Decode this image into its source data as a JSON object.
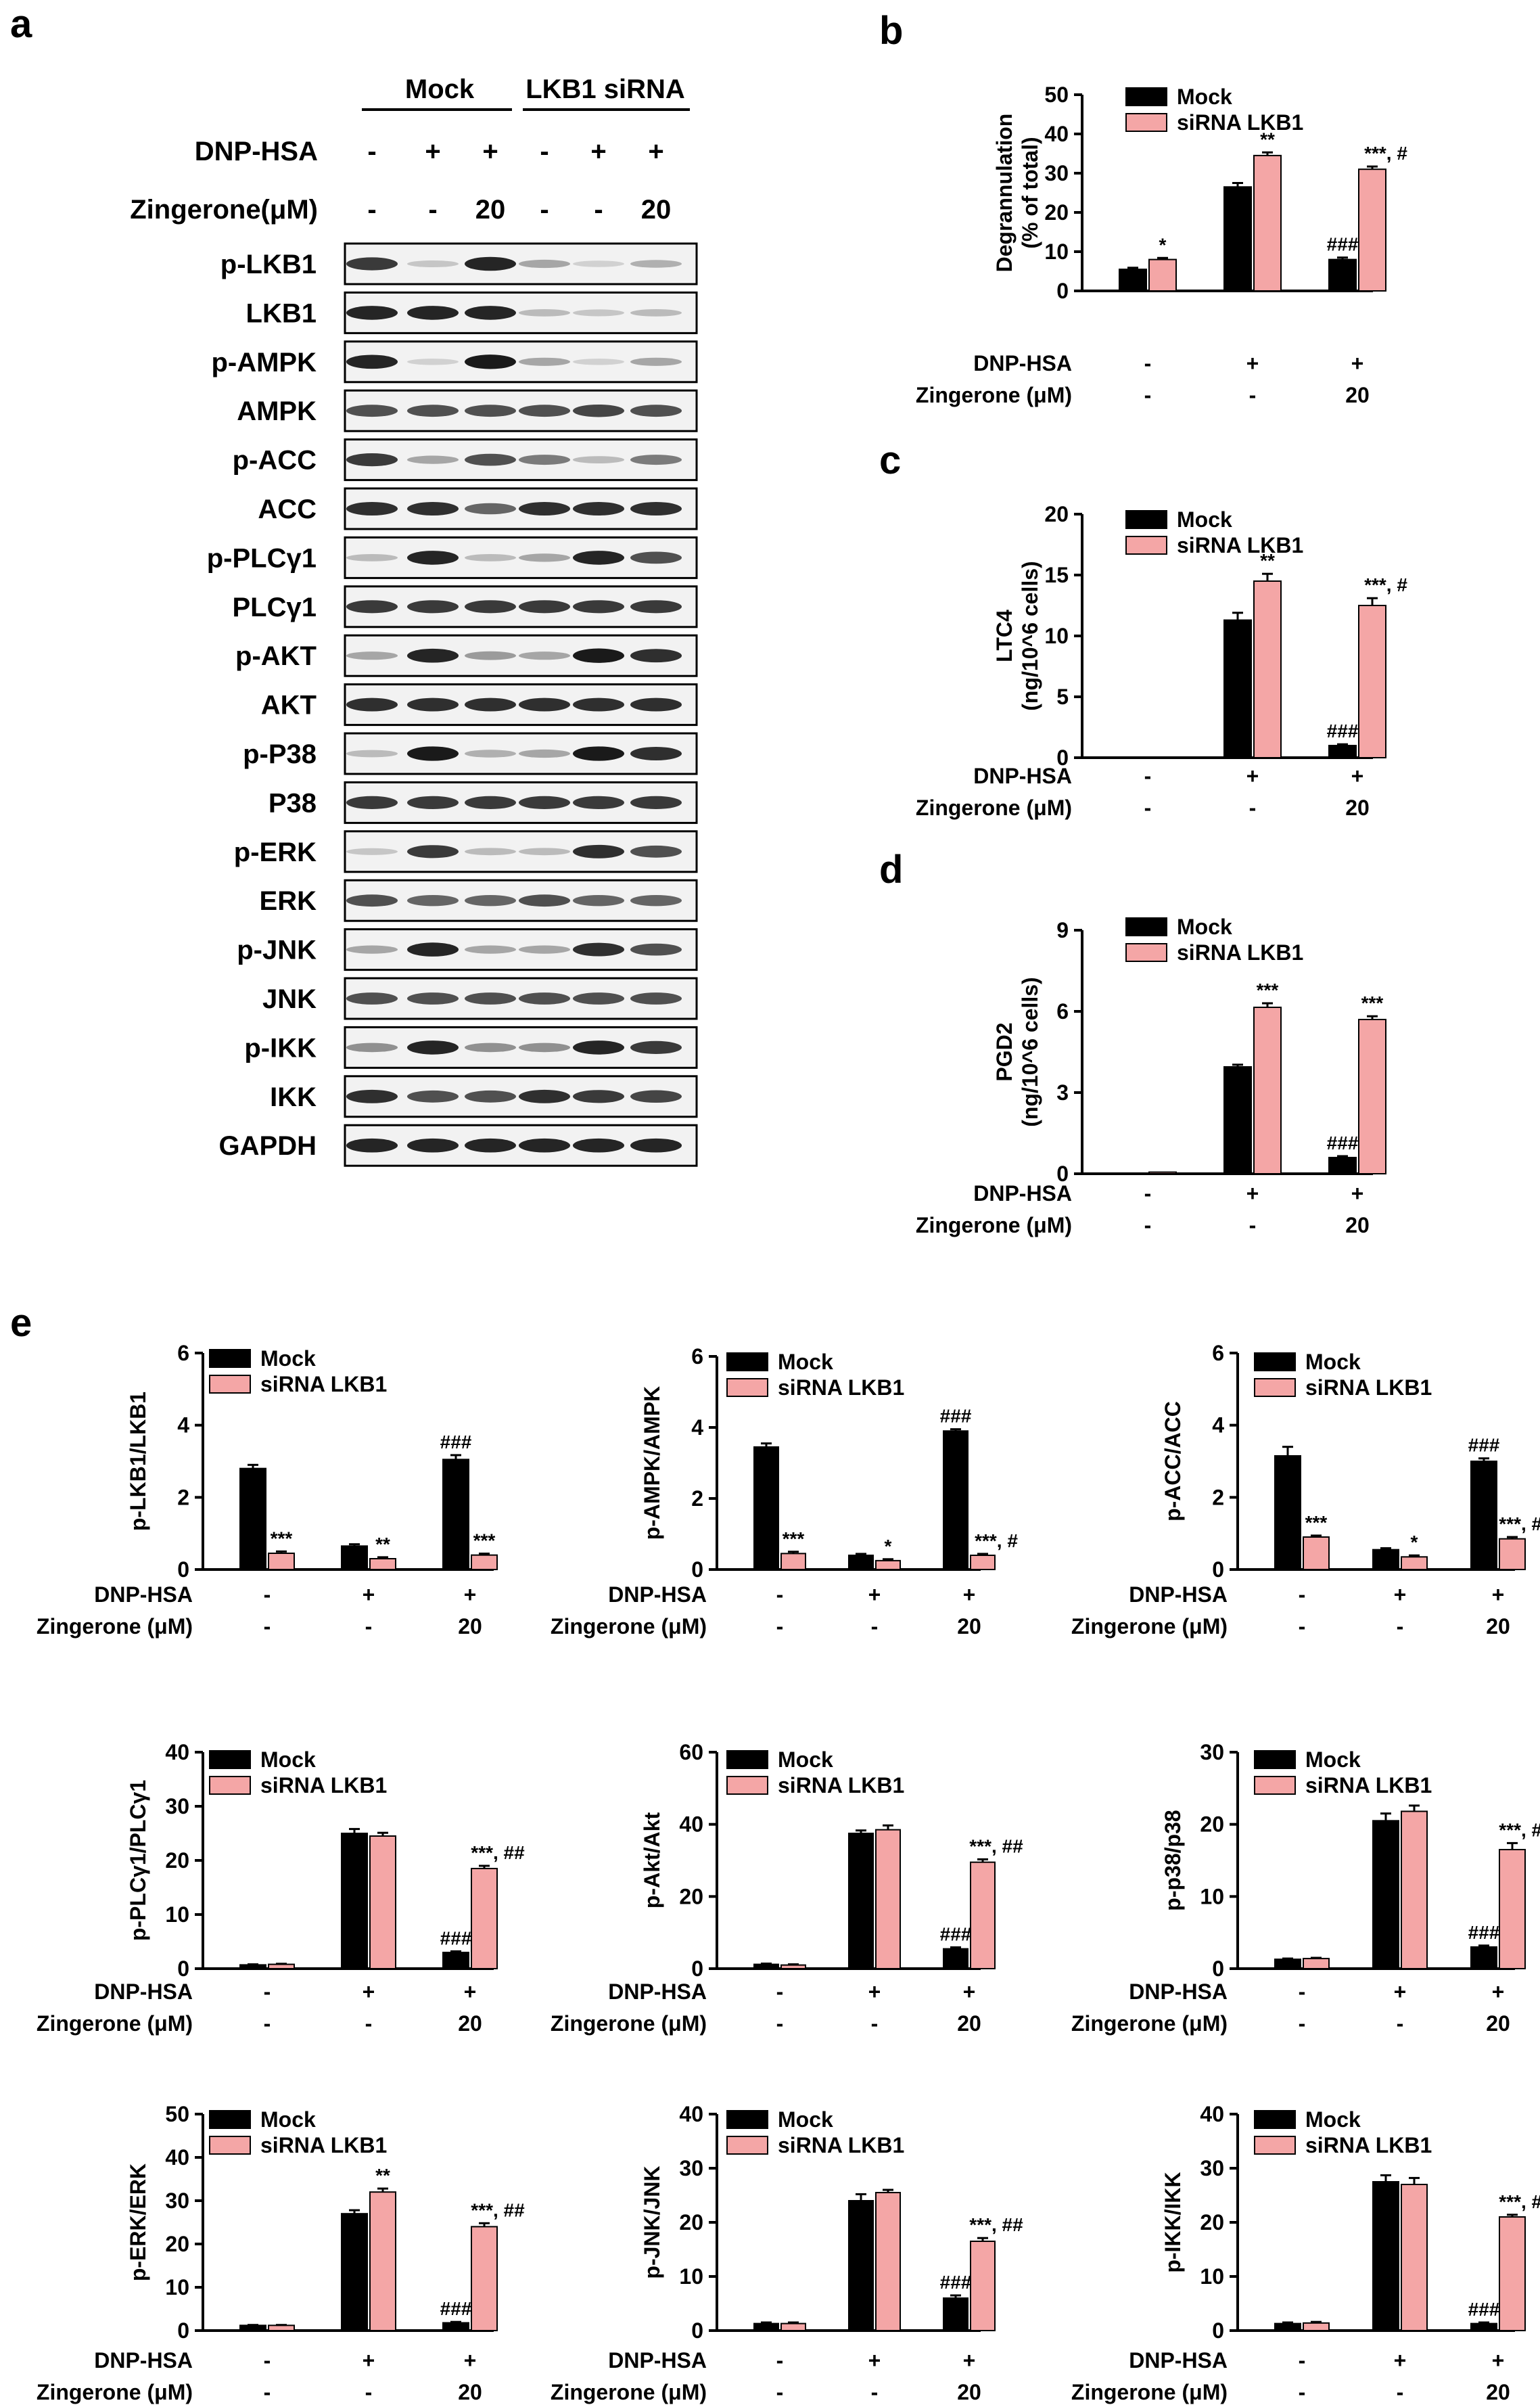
{
  "figure": {
    "panel_letters": [
      "a",
      "b",
      "c",
      "d",
      "e"
    ],
    "legend": {
      "mock": "Mock",
      "sirna": "siRNA LKB1",
      "mock_color": "#000000",
      "sirna_color": "#f4a6a6"
    },
    "condition_rows": {
      "dnp_label": "DNP-HSA",
      "zing_label": "Zingerone (μM)",
      "dnp_values": [
        "-",
        "+",
        "+"
      ],
      "zing_values": [
        "-",
        "-",
        "20"
      ]
    }
  },
  "western_blot": {
    "group_labels": [
      "Mock",
      "LKB1 siRNA"
    ],
    "dnp_label": "DNP-HSA",
    "zing_label": "Zingerone(μM)",
    "dnp_values": [
      "-",
      "+",
      "+",
      "-",
      "+",
      "+"
    ],
    "zing_values": [
      "-",
      "-",
      "20",
      "-",
      "-",
      "20"
    ],
    "proteins": [
      "p-LKB1",
      "LKB1",
      "p-AMPK",
      "AMPK",
      "p-ACC",
      "ACC",
      "p-PLCγ1",
      "PLCγ1",
      "p-AKT",
      "AKT",
      "p-P38",
      "P38",
      "p-ERK",
      "ERK",
      "p-JNK",
      "JNK",
      "p-IKK",
      "IKK",
      "GAPDH"
    ],
    "band_intensity": [
      [
        0.8,
        0.15,
        0.9,
        0.3,
        0.1,
        0.25
      ],
      [
        0.9,
        0.9,
        0.9,
        0.2,
        0.15,
        0.2
      ],
      [
        0.9,
        0.1,
        0.95,
        0.3,
        0.1,
        0.3
      ],
      [
        0.7,
        0.7,
        0.7,
        0.7,
        0.75,
        0.7
      ],
      [
        0.8,
        0.3,
        0.7,
        0.5,
        0.2,
        0.5
      ],
      [
        0.85,
        0.85,
        0.6,
        0.85,
        0.85,
        0.85
      ],
      [
        0.2,
        0.9,
        0.2,
        0.3,
        0.9,
        0.7
      ],
      [
        0.8,
        0.8,
        0.8,
        0.8,
        0.8,
        0.8
      ],
      [
        0.3,
        0.9,
        0.35,
        0.3,
        0.95,
        0.85
      ],
      [
        0.85,
        0.85,
        0.85,
        0.85,
        0.85,
        0.85
      ],
      [
        0.2,
        0.95,
        0.25,
        0.3,
        0.95,
        0.85
      ],
      [
        0.8,
        0.8,
        0.8,
        0.8,
        0.8,
        0.8
      ],
      [
        0.15,
        0.8,
        0.2,
        0.2,
        0.85,
        0.7
      ],
      [
        0.7,
        0.6,
        0.6,
        0.7,
        0.6,
        0.6
      ],
      [
        0.3,
        0.9,
        0.3,
        0.3,
        0.85,
        0.7
      ],
      [
        0.7,
        0.7,
        0.7,
        0.7,
        0.7,
        0.7
      ],
      [
        0.4,
        0.9,
        0.4,
        0.4,
        0.9,
        0.8
      ],
      [
        0.85,
        0.7,
        0.7,
        0.85,
        0.8,
        0.75
      ],
      [
        0.9,
        0.9,
        0.9,
        0.9,
        0.9,
        0.9
      ]
    ]
  },
  "chart_data": [
    {
      "id": "b",
      "type": "bar",
      "ylabel": [
        "Degrannulation",
        "(% of total)"
      ],
      "ylim": [
        0,
        50
      ],
      "yticks": [
        0,
        10,
        20,
        30,
        40,
        50
      ],
      "categories": [
        "-/-",
        "+/-",
        "+/20"
      ],
      "series": [
        {
          "name": "Mock",
          "values": [
            5.5,
            26.5,
            8.0
          ],
          "errors": [
            0.4,
            1.0,
            0.5
          ],
          "annotations": [
            "",
            "",
            "###"
          ]
        },
        {
          "name": "siRNA LKB1",
          "values": [
            8.0,
            34.5,
            31.0
          ],
          "errors": [
            0.4,
            0.8,
            0.7
          ],
          "annotations": [
            "*",
            "**",
            "***, #"
          ]
        }
      ]
    },
    {
      "id": "c",
      "type": "bar",
      "ylabel": [
        "LTC4",
        "(ng/10^6 cells)"
      ],
      "ylim": [
        0,
        20
      ],
      "yticks": [
        0,
        5,
        10,
        15,
        20
      ],
      "categories": [
        "-/-",
        "+/-",
        "+/20"
      ],
      "series": [
        {
          "name": "Mock",
          "values": [
            0.05,
            11.3,
            1.0
          ],
          "errors": [
            0.0,
            0.6,
            0.1
          ],
          "annotations": [
            "",
            "",
            "###"
          ]
        },
        {
          "name": "siRNA LKB1",
          "values": [
            0.05,
            14.5,
            12.5
          ],
          "errors": [
            0.0,
            0.6,
            0.6
          ],
          "annotations": [
            "",
            "**",
            "***, #"
          ]
        }
      ]
    },
    {
      "id": "d",
      "type": "bar",
      "ylabel": [
        "PGD2",
        "(ng/10^6 cells)"
      ],
      "ylim": [
        0,
        9
      ],
      "yticks": [
        0,
        3,
        6,
        9
      ],
      "categories": [
        "-/-",
        "+/-",
        "+/20"
      ],
      "series": [
        {
          "name": "Mock",
          "values": [
            0.02,
            3.95,
            0.6
          ],
          "errors": [
            0.0,
            0.08,
            0.05
          ],
          "annotations": [
            "",
            "",
            "###"
          ]
        },
        {
          "name": "siRNA LKB1",
          "values": [
            0.06,
            6.15,
            5.7
          ],
          "errors": [
            0.0,
            0.15,
            0.12
          ],
          "annotations": [
            "",
            "***",
            "***"
          ]
        }
      ]
    },
    {
      "id": "e1",
      "type": "bar",
      "ylabel": [
        "p-LKB1/LKB1"
      ],
      "ylim": [
        0,
        6
      ],
      "yticks": [
        0,
        2,
        4,
        6
      ],
      "categories": [
        "-/-",
        "+/-",
        "+/20"
      ],
      "series": [
        {
          "name": "Mock",
          "values": [
            2.8,
            0.65,
            3.05
          ],
          "errors": [
            0.1,
            0.05,
            0.12
          ],
          "annotations": [
            "",
            "",
            "###"
          ]
        },
        {
          "name": "siRNA LKB1",
          "values": [
            0.45,
            0.3,
            0.4
          ],
          "errors": [
            0.05,
            0.04,
            0.04
          ],
          "annotations": [
            "***",
            "**",
            "***"
          ]
        }
      ]
    },
    {
      "id": "e2",
      "type": "bar",
      "ylabel": [
        "p-AMPK/AMPK"
      ],
      "ylim": [
        0,
        6
      ],
      "yticks": [
        0,
        2,
        4,
        6
      ],
      "categories": [
        "-/-",
        "+/-",
        "+/20"
      ],
      "series": [
        {
          "name": "Mock",
          "values": [
            3.45,
            0.4,
            3.9
          ],
          "errors": [
            0.1,
            0.04,
            0.05
          ],
          "annotations": [
            "",
            "",
            "###"
          ]
        },
        {
          "name": "siRNA LKB1",
          "values": [
            0.45,
            0.25,
            0.4
          ],
          "errors": [
            0.05,
            0.04,
            0.04
          ],
          "annotations": [
            "***",
            "*",
            "***, #"
          ]
        }
      ]
    },
    {
      "id": "e3",
      "type": "bar",
      "ylabel": [
        "p-ACC/ACC"
      ],
      "ylim": [
        0,
        6
      ],
      "yticks": [
        0,
        2,
        4,
        6
      ],
      "categories": [
        "-/-",
        "+/-",
        "+/20"
      ],
      "series": [
        {
          "name": "Mock",
          "values": [
            3.15,
            0.55,
            3.0
          ],
          "errors": [
            0.25,
            0.04,
            0.08
          ],
          "annotations": [
            "",
            "",
            "###"
          ]
        },
        {
          "name": "siRNA LKB1",
          "values": [
            0.9,
            0.35,
            0.85
          ],
          "errors": [
            0.04,
            0.04,
            0.05
          ],
          "annotations": [
            "***",
            "*",
            "***, ##"
          ]
        }
      ]
    },
    {
      "id": "e4",
      "type": "bar",
      "ylabel": [
        "p-PLCγ1/PLCγ1"
      ],
      "ylim": [
        0,
        40
      ],
      "yticks": [
        0,
        10,
        20,
        30,
        40
      ],
      "categories": [
        "-/-",
        "+/-",
        "+/20"
      ],
      "series": [
        {
          "name": "Mock",
          "values": [
            0.7,
            25.0,
            3.0
          ],
          "errors": [
            0.1,
            0.8,
            0.2
          ],
          "annotations": [
            "",
            "",
            "###"
          ]
        },
        {
          "name": "siRNA LKB1",
          "values": [
            0.8,
            24.5,
            18.5
          ],
          "errors": [
            0.1,
            0.6,
            0.5
          ],
          "annotations": [
            "",
            "",
            "***, ##"
          ]
        }
      ]
    },
    {
      "id": "e5",
      "type": "bar",
      "ylabel": [
        "p-Akt/Akt"
      ],
      "ylim": [
        0,
        60
      ],
      "yticks": [
        0,
        20,
        40,
        60
      ],
      "categories": [
        "-/-",
        "+/-",
        "+/20"
      ],
      "series": [
        {
          "name": "Mock",
          "values": [
            1.2,
            37.5,
            5.5
          ],
          "errors": [
            0.2,
            0.8,
            0.4
          ],
          "annotations": [
            "",
            "",
            "###"
          ]
        },
        {
          "name": "siRNA LKB1",
          "values": [
            1.0,
            38.5,
            29.5
          ],
          "errors": [
            0.2,
            1.2,
            0.8
          ],
          "annotations": [
            "",
            "",
            "***, ##"
          ]
        }
      ]
    },
    {
      "id": "e6",
      "type": "bar",
      "ylabel": [
        "p-p38/p38"
      ],
      "ylim": [
        0,
        30
      ],
      "yticks": [
        0,
        10,
        20,
        30
      ],
      "categories": [
        "-/-",
        "+/-",
        "+/20"
      ],
      "series": [
        {
          "name": "Mock",
          "values": [
            1.3,
            20.5,
            3.0
          ],
          "errors": [
            0.1,
            1.0,
            0.2
          ],
          "annotations": [
            "",
            "",
            "###"
          ]
        },
        {
          "name": "siRNA LKB1",
          "values": [
            1.4,
            21.8,
            16.5
          ],
          "errors": [
            0.1,
            0.8,
            0.9
          ],
          "annotations": [
            "",
            "",
            "***, ##"
          ]
        }
      ]
    },
    {
      "id": "e7",
      "type": "bar",
      "ylabel": [
        "p-ERK/ERK"
      ],
      "ylim": [
        0,
        50
      ],
      "yticks": [
        0,
        10,
        20,
        30,
        40,
        50
      ],
      "categories": [
        "-/-",
        "+/-",
        "+/20"
      ],
      "series": [
        {
          "name": "Mock",
          "values": [
            1.2,
            27.0,
            1.8
          ],
          "errors": [
            0.1,
            0.8,
            0.2
          ],
          "annotations": [
            "",
            "",
            "###"
          ]
        },
        {
          "name": "siRNA LKB1",
          "values": [
            1.2,
            32.0,
            24.0
          ],
          "errors": [
            0.1,
            0.8,
            0.8
          ],
          "annotations": [
            "",
            "**",
            "***, ##"
          ]
        }
      ]
    },
    {
      "id": "e8",
      "type": "bar",
      "ylabel": [
        "p-JNK/JNK"
      ],
      "ylim": [
        0,
        40
      ],
      "yticks": [
        0,
        10,
        20,
        30,
        40
      ],
      "categories": [
        "-/-",
        "+/-",
        "+/20"
      ],
      "series": [
        {
          "name": "Mock",
          "values": [
            1.3,
            24.0,
            6.0
          ],
          "errors": [
            0.2,
            1.2,
            0.5
          ],
          "annotations": [
            "",
            "",
            "###"
          ]
        },
        {
          "name": "siRNA LKB1",
          "values": [
            1.3,
            25.5,
            16.5
          ],
          "errors": [
            0.2,
            0.5,
            0.6
          ],
          "annotations": [
            "",
            "",
            "***, ##"
          ]
        }
      ]
    },
    {
      "id": "e9",
      "type": "bar",
      "ylabel": [
        "p-IKK/IKK"
      ],
      "ylim": [
        0,
        40
      ],
      "yticks": [
        0,
        10,
        20,
        30,
        40
      ],
      "categories": [
        "-/-",
        "+/-",
        "+/20"
      ],
      "series": [
        {
          "name": "Mock",
          "values": [
            1.3,
            27.5,
            1.3
          ],
          "errors": [
            0.2,
            1.2,
            0.2
          ],
          "annotations": [
            "",
            "",
            "###"
          ]
        },
        {
          "name": "siRNA LKB1",
          "values": [
            1.4,
            27.0,
            21.0
          ],
          "errors": [
            0.2,
            1.2,
            0.4
          ],
          "annotations": [
            "",
            "",
            "***, ##"
          ]
        }
      ]
    }
  ]
}
